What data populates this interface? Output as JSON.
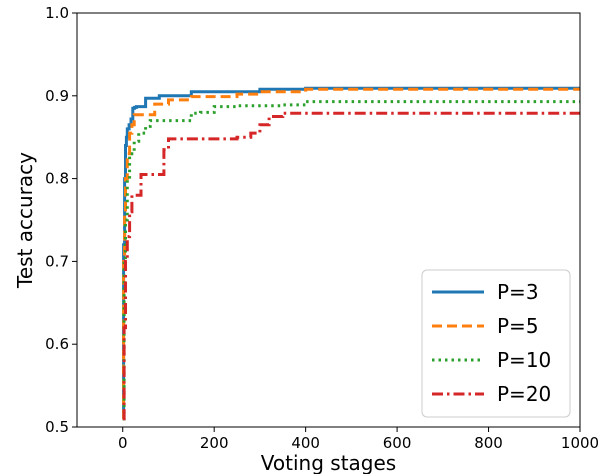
{
  "chart_data": {
    "type": "line",
    "title": "",
    "xlabel": "Voting stages",
    "ylabel": "Test accuracy",
    "xlim": [
      -100,
      1000
    ],
    "ylim": [
      0.5,
      1.0
    ],
    "xticks": [
      0,
      200,
      400,
      600,
      800,
      1000
    ],
    "yticks": [
      0.5,
      0.6,
      0.7,
      0.8,
      0.9,
      1.0
    ],
    "xtick_labels": [
      "0",
      "200",
      "400",
      "600",
      "800",
      "1000"
    ],
    "ytick_labels": [
      "0.5",
      "0.6",
      "0.7",
      "0.8",
      "0.9",
      "1.0"
    ],
    "grid": false,
    "legend_position": "lower-right",
    "series": [
      {
        "name": "P=3",
        "color": "#1f77b4",
        "dash": "solid",
        "x": [
          0,
          2,
          4,
          6,
          8,
          10,
          14,
          18,
          22,
          26,
          30,
          50,
          80,
          150,
          300,
          400,
          1000
        ],
        "y": [
          0.51,
          0.72,
          0.8,
          0.84,
          0.85,
          0.86,
          0.865,
          0.872,
          0.885,
          0.886,
          0.887,
          0.897,
          0.9,
          0.905,
          0.908,
          0.909,
          0.909
        ]
      },
      {
        "name": "P=5",
        "color": "#ff7f0e",
        "dash": "dashed",
        "x": [
          0,
          2,
          4,
          6,
          10,
          15,
          20,
          25,
          40,
          70,
          100,
          150,
          250,
          300,
          400,
          1000
        ],
        "y": [
          0.51,
          0.7,
          0.76,
          0.8,
          0.83,
          0.855,
          0.865,
          0.877,
          0.877,
          0.89,
          0.895,
          0.899,
          0.902,
          0.905,
          0.908,
          0.908
        ]
      },
      {
        "name": "P=10",
        "color": "#2ca02c",
        "dash": "dotted",
        "x": [
          0,
          3,
          6,
          10,
          15,
          25,
          35,
          50,
          60,
          100,
          150,
          170,
          200,
          250,
          350,
          400,
          1000
        ],
        "y": [
          0.51,
          0.7,
          0.75,
          0.8,
          0.83,
          0.845,
          0.855,
          0.863,
          0.87,
          0.87,
          0.879,
          0.88,
          0.887,
          0.888,
          0.889,
          0.893,
          0.893
        ]
      },
      {
        "name": "P=20",
        "color": "#d62728",
        "dash": "dashdot",
        "x": [
          0,
          3,
          6,
          10,
          15,
          20,
          30,
          40,
          80,
          90,
          100,
          150,
          250,
          280,
          300,
          320,
          350,
          1000
        ],
        "y": [
          0.51,
          0.62,
          0.7,
          0.73,
          0.76,
          0.78,
          0.78,
          0.805,
          0.805,
          0.835,
          0.848,
          0.848,
          0.85,
          0.855,
          0.865,
          0.875,
          0.879,
          0.879
        ]
      }
    ]
  }
}
